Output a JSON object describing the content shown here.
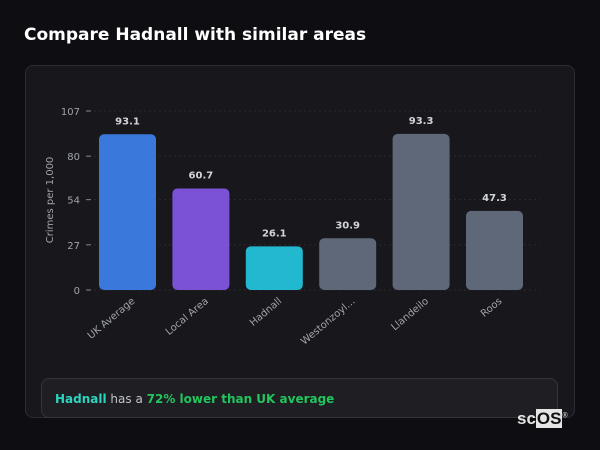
{
  "title": "Compare Hadnall with similar areas",
  "chart_data": {
    "type": "bar",
    "title": "",
    "xlabel": "",
    "ylabel": "Crimes per 1,000",
    "ylim": [
      0,
      107
    ],
    "yticks": [
      0,
      27,
      54,
      80,
      107
    ],
    "grid": true,
    "categories": [
      "UK Average",
      "Local Area",
      "Hadnall",
      "Westonzoyl…",
      "Llandeilo",
      "Roos"
    ],
    "values": [
      93.1,
      60.7,
      26.1,
      30.9,
      93.3,
      47.3
    ],
    "data_labels": [
      "93.1",
      "60.7",
      "26.1",
      "30.9",
      "93.3",
      "47.3"
    ],
    "colors": [
      "#3b78db",
      "#7b52d6",
      "#22b8cf",
      "#5f6878",
      "#5f6878",
      "#5f6878"
    ]
  },
  "footer": {
    "place": "Hadnall",
    "middle": " has a ",
    "highlight": "72% lower than UK average"
  },
  "logo": {
    "text1": "sc",
    "text2": "OS",
    "mark": "®"
  }
}
